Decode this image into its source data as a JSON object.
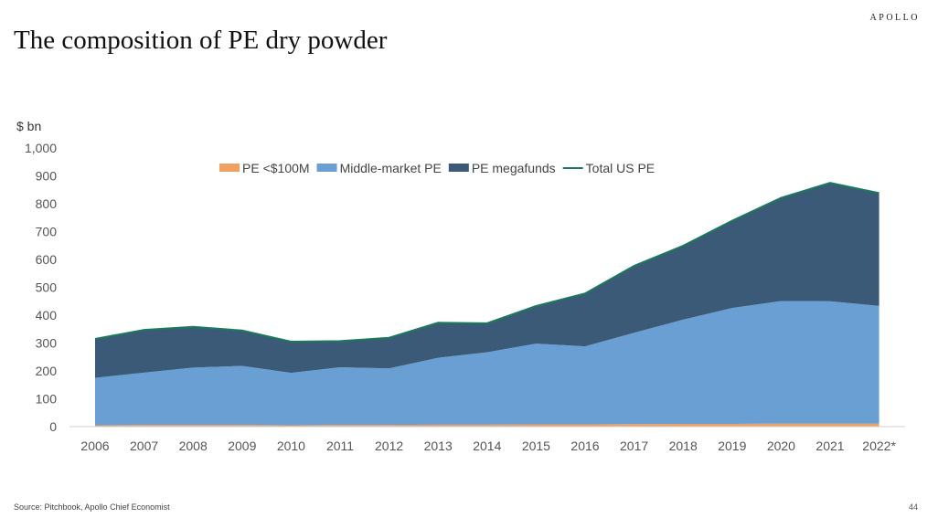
{
  "header": {
    "brand": "APOLLO",
    "title": "The composition of PE dry powder"
  },
  "footer": {
    "source": "Source: Pitchbook, Apollo Chief Economist",
    "page_number": "44"
  },
  "colors": {
    "pe_small": "#f0a060",
    "middle_market": "#6a9fd4",
    "megafunds": "#3b5a78",
    "total_line": "#1a7a5a",
    "axis": "#d0d0d0",
    "tick_text": "#555555"
  },
  "chart_data": {
    "type": "area",
    "stacked": true,
    "title": "The composition of PE dry powder",
    "ylabel": "$ bn",
    "xlabel": "",
    "ylim": [
      0,
      1000
    ],
    "yticks": [
      0,
      100,
      200,
      300,
      400,
      500,
      600,
      700,
      800,
      900,
      1000
    ],
    "ytick_labels": [
      "0",
      "100",
      "200",
      "300",
      "400",
      "500",
      "600",
      "700",
      "800",
      "900",
      "1,000"
    ],
    "categories": [
      "2006",
      "2007",
      "2008",
      "2009",
      "2010",
      "2011",
      "2012",
      "2013",
      "2014",
      "2015",
      "2016",
      "2017",
      "2018",
      "2019",
      "2020",
      "2021",
      "2022*"
    ],
    "legend_position": "top-center",
    "grid": false,
    "series": [
      {
        "name": "PE <$100M",
        "kind": "area",
        "color_key": "pe_small",
        "values": [
          5,
          6,
          6,
          6,
          5,
          6,
          6,
          7,
          7,
          8,
          8,
          9,
          10,
          10,
          11,
          11,
          11
        ]
      },
      {
        "name": "Middle-market PE",
        "kind": "area",
        "color_key": "middle_market",
        "values": [
          170,
          188,
          206,
          212,
          188,
          207,
          203,
          240,
          260,
          290,
          280,
          328,
          374,
          416,
          440,
          439,
          422
        ]
      },
      {
        "name": "PE megafunds",
        "kind": "area",
        "color_key": "megafunds",
        "values": [
          140,
          153,
          146,
          127,
          112,
          94,
          110,
          126,
          104,
          135,
          190,
          240,
          265,
          313,
          370,
          425,
          405
        ]
      },
      {
        "name": "Total US PE",
        "kind": "line",
        "color_key": "total_line",
        "values": [
          315,
          347,
          358,
          345,
          305,
          307,
          319,
          373,
          371,
          433,
          478,
          577,
          649,
          739,
          821,
          875,
          838
        ]
      }
    ]
  }
}
